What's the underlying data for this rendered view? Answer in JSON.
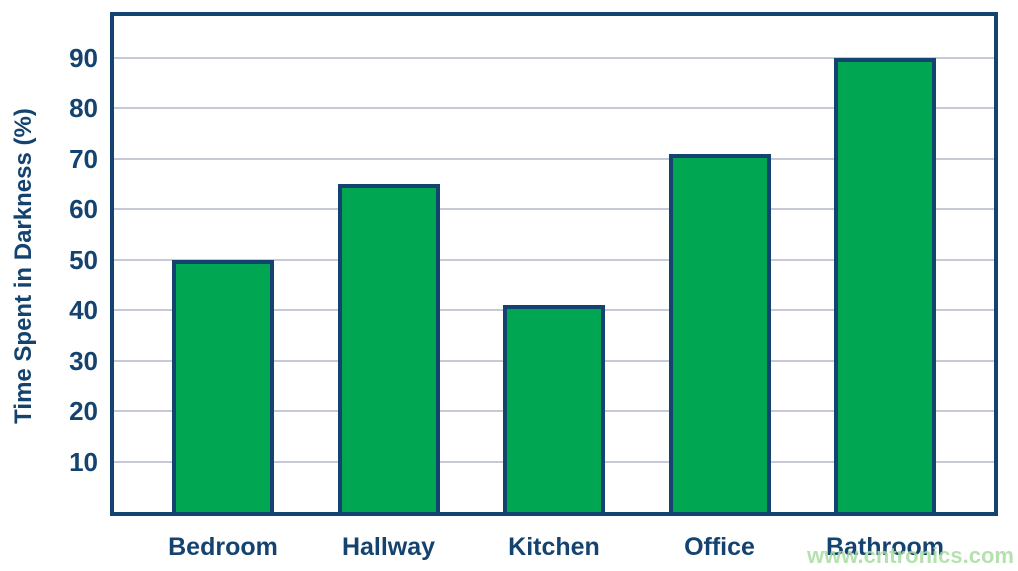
{
  "chart_data": {
    "type": "bar",
    "categories": [
      "Bedroom",
      "Hallway",
      "Kitchen",
      "Office",
      "Bathroom"
    ],
    "values": [
      50,
      65,
      41,
      71,
      90
    ],
    "title": "",
    "xlabel": "",
    "ylabel": "Time Spent in Darkness (%)",
    "ylim": [
      0,
      100
    ],
    "yticks": [
      10,
      20,
      30,
      40,
      50,
      60,
      70,
      80,
      90
    ],
    "grid": true,
    "legend": "none",
    "bar_color": "#00A651",
    "bar_border_color": "#14436F",
    "axis_color": "#14436F",
    "gridline_color": "#C6CAD6",
    "text_color": "#14436F"
  },
  "watermark": {
    "text": "www.cntronics.com",
    "color": "#A9DCA2"
  }
}
